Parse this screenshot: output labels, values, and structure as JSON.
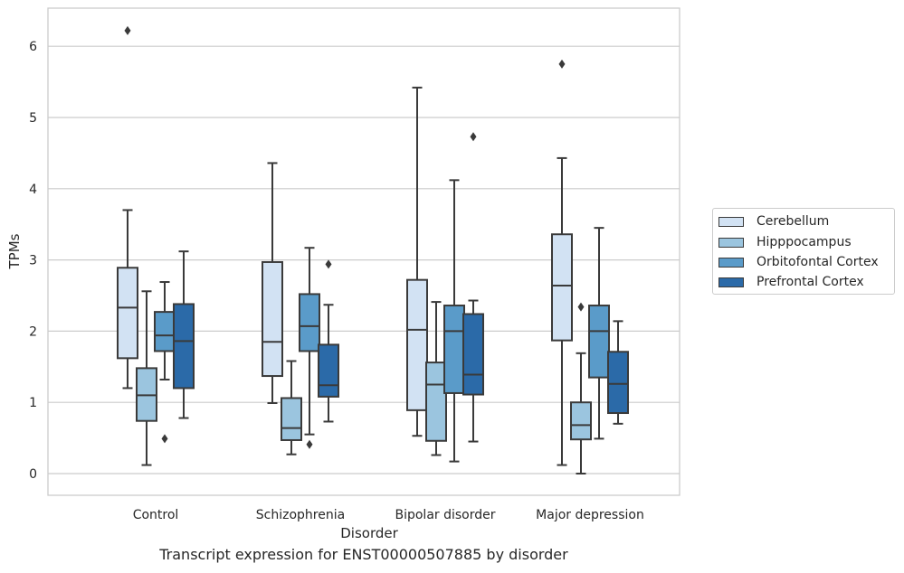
{
  "chart_data": {
    "type": "box",
    "title": "Transcript expression for ENST00000507885 by disorder",
    "xlabel": "Disorder",
    "ylabel": "TPMs",
    "ylim": [
      -0.3,
      6.55
    ],
    "yticks": [
      0,
      1,
      2,
      3,
      4,
      5,
      6
    ],
    "categories": [
      "Control",
      "Schizophrenia",
      "Bipolar disorder",
      "Major depression"
    ],
    "grid": "horizontal",
    "legend_position": "right",
    "series": [
      {
        "name": "Cerebellum",
        "color": "#d2e2f3",
        "boxes": [
          {
            "whisker_low": 1.2,
            "q1": 1.62,
            "median": 2.33,
            "q3": 2.89,
            "whisker_high": 3.7,
            "outliers": [
              6.22
            ]
          },
          {
            "whisker_low": 0.99,
            "q1": 1.37,
            "median": 1.85,
            "q3": 2.97,
            "whisker_high": 4.36,
            "outliers": []
          },
          {
            "whisker_low": 0.53,
            "q1": 0.89,
            "median": 2.02,
            "q3": 2.72,
            "whisker_high": 5.42,
            "outliers": []
          },
          {
            "whisker_low": 0.12,
            "q1": 1.87,
            "median": 2.64,
            "q3": 3.36,
            "whisker_high": 4.43,
            "outliers": [
              5.75
            ]
          }
        ]
      },
      {
        "name": "Hipppocampus",
        "color": "#9bc5df",
        "boxes": [
          {
            "whisker_low": 0.12,
            "q1": 0.74,
            "median": 1.1,
            "q3": 1.48,
            "whisker_high": 2.56,
            "outliers": []
          },
          {
            "whisker_low": 0.27,
            "q1": 0.47,
            "median": 0.64,
            "q3": 1.06,
            "whisker_high": 1.58,
            "outliers": []
          },
          {
            "whisker_low": 0.26,
            "q1": 0.46,
            "median": 1.25,
            "q3": 1.56,
            "whisker_high": 2.41,
            "outliers": []
          },
          {
            "whisker_low": 0.0,
            "q1": 0.48,
            "median": 0.68,
            "q3": 1.0,
            "whisker_high": 1.69,
            "outliers": [
              2.34
            ]
          }
        ]
      },
      {
        "name": "Orbitofontal Cortex",
        "color": "#5a9bc9",
        "boxes": [
          {
            "whisker_low": 1.32,
            "q1": 1.72,
            "median": 1.94,
            "q3": 2.27,
            "whisker_high": 2.69,
            "outliers": [
              0.49
            ]
          },
          {
            "whisker_low": 0.55,
            "q1": 1.72,
            "median": 2.07,
            "q3": 2.52,
            "whisker_high": 3.17,
            "outliers": [
              0.41
            ]
          },
          {
            "whisker_low": 0.17,
            "q1": 1.13,
            "median": 2.0,
            "q3": 2.36,
            "whisker_high": 4.12,
            "outliers": []
          },
          {
            "whisker_low": 0.49,
            "q1": 1.35,
            "median": 2.0,
            "q3": 2.36,
            "whisker_high": 3.45,
            "outliers": []
          }
        ]
      },
      {
        "name": "Prefrontal Cortex",
        "color": "#2b6aa8",
        "boxes": [
          {
            "whisker_low": 0.78,
            "q1": 1.2,
            "median": 1.86,
            "q3": 2.38,
            "whisker_high": 3.12,
            "outliers": []
          },
          {
            "whisker_low": 0.73,
            "q1": 1.08,
            "median": 1.24,
            "q3": 1.81,
            "whisker_high": 2.37,
            "outliers": [
              2.94
            ]
          },
          {
            "whisker_low": 0.45,
            "q1": 1.11,
            "median": 1.39,
            "q3": 2.24,
            "whisker_high": 2.43,
            "outliers": [
              4.73
            ]
          },
          {
            "whisker_low": 0.7,
            "q1": 0.85,
            "median": 1.26,
            "q3": 1.71,
            "whisker_high": 2.14,
            "outliers": []
          }
        ]
      }
    ]
  }
}
